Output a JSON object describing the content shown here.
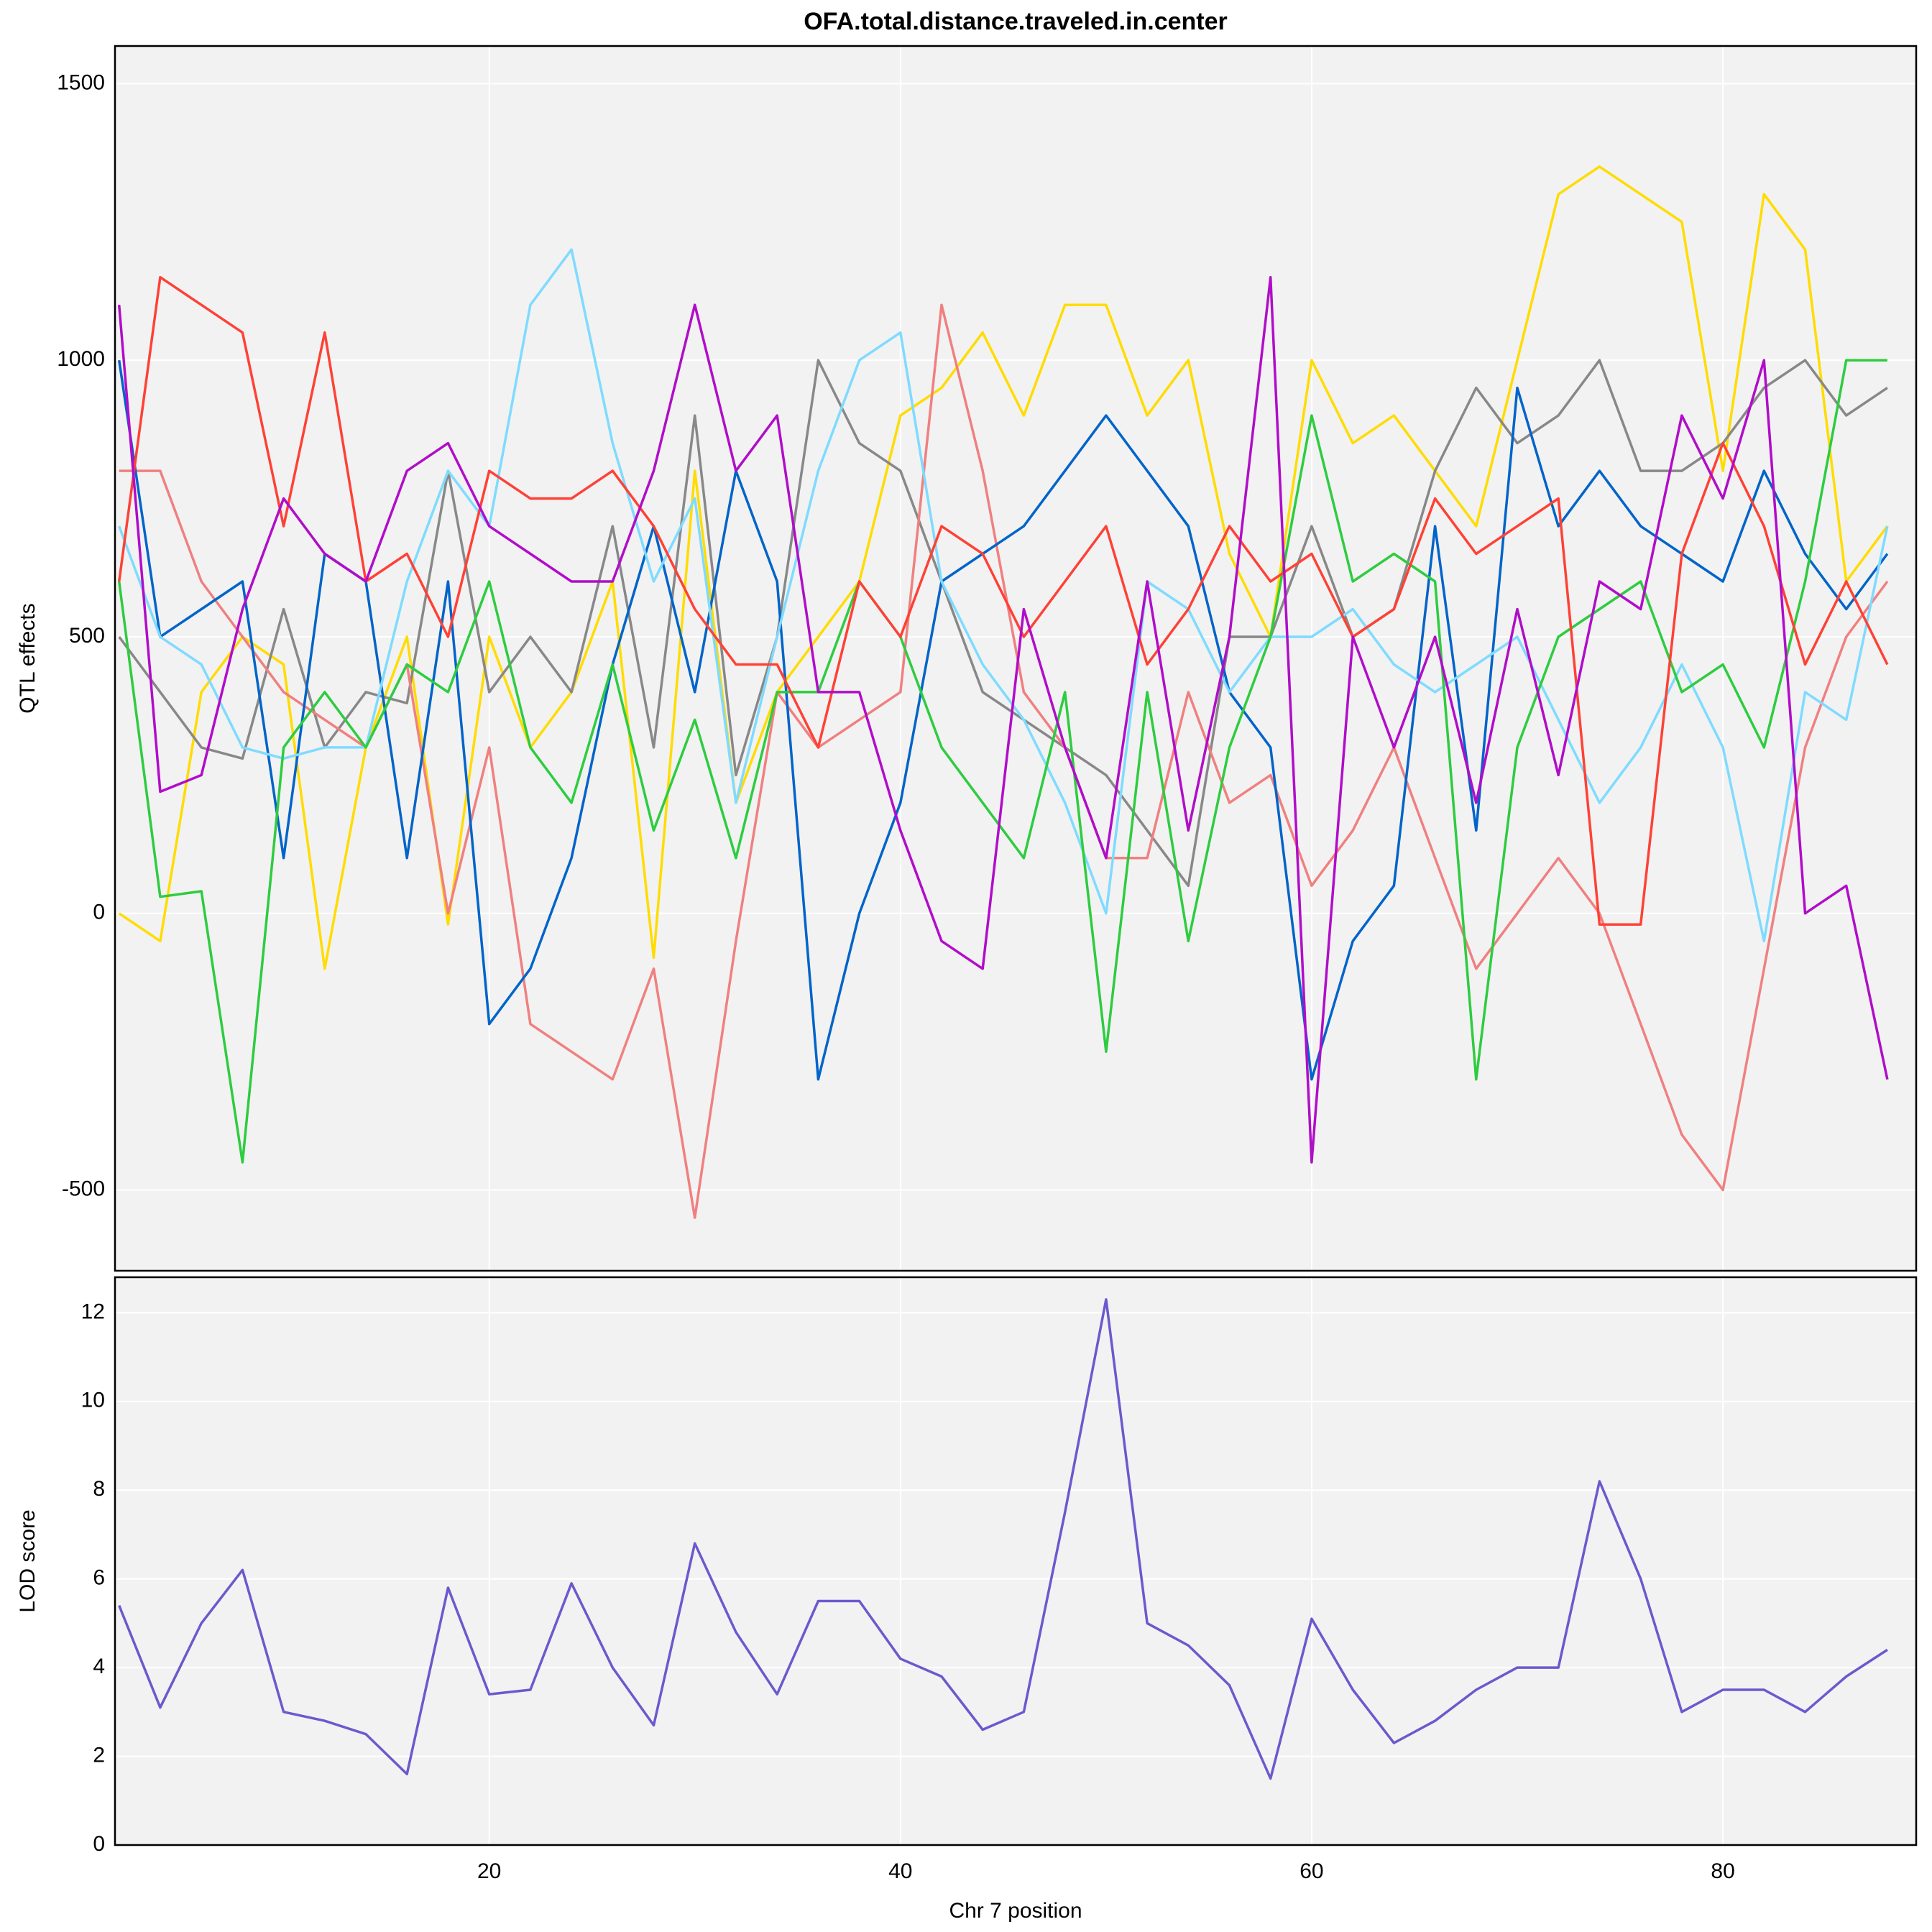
{
  "chart_data": [
    {
      "type": "line",
      "title": "OFA.total.distance.traveled.in.center",
      "y_label": "QTL effects",
      "x": [
        2,
        4,
        6,
        8,
        10,
        12,
        14,
        16,
        18,
        20,
        22,
        24,
        26,
        28,
        30,
        32,
        34,
        36,
        38,
        40,
        42,
        44,
        46,
        48,
        50,
        52,
        54,
        56,
        58,
        60,
        62,
        64,
        66,
        68,
        70,
        72,
        74,
        76,
        78,
        80,
        82,
        84,
        86,
        88
      ],
      "ylim": [
        -646,
        1568
      ],
      "yticks": [
        -500,
        0,
        500,
        1000,
        1500
      ],
      "grid": true,
      "series": [
        {
          "color": "#FFDC00",
          "values": [
            0,
            -50,
            400,
            500,
            450,
            -100,
            300,
            500,
            -20,
            500,
            300,
            400,
            600,
            -80,
            800,
            200,
            400,
            500,
            600,
            900,
            950,
            1050,
            900,
            1100,
            1100,
            900,
            1000,
            650,
            500,
            1000,
            850,
            900,
            800,
            700,
            1000,
            1300,
            1350,
            1300,
            1250,
            800,
            1300,
            1200,
            600,
            700
          ]
        },
        {
          "color": "#888888",
          "values": [
            500,
            400,
            300,
            280,
            550,
            300,
            400,
            380,
            800,
            400,
            500,
            400,
            700,
            300,
            900,
            250,
            500,
            1000,
            850,
            800,
            600,
            400,
            350,
            300,
            250,
            150,
            50,
            500,
            500,
            700,
            500,
            550,
            800,
            950,
            850,
            900,
            1000,
            800,
            800,
            850,
            950,
            1000,
            900,
            950
          ]
        },
        {
          "color": "#F08080",
          "values": [
            800,
            800,
            600,
            500,
            400,
            350,
            300,
            450,
            0,
            300,
            -200,
            -250,
            -300,
            -100,
            -550,
            -50,
            400,
            300,
            350,
            400,
            1100,
            800,
            400,
            300,
            100,
            100,
            400,
            200,
            250,
            50,
            150,
            300,
            100,
            -100,
            0,
            100,
            0,
            -200,
            -400,
            -500,
            -100,
            300,
            500,
            600
          ]
        },
        {
          "color": "#0064C9",
          "values": [
            1000,
            500,
            550,
            600,
            100,
            650,
            600,
            100,
            600,
            -200,
            -100,
            100,
            450,
            700,
            400,
            800,
            600,
            -300,
            0,
            200,
            600,
            650,
            700,
            800,
            900,
            800,
            700,
            400,
            300,
            -300,
            -50,
            50,
            700,
            150,
            950,
            700,
            800,
            700,
            650,
            600,
            800,
            650,
            550,
            650
          ]
        },
        {
          "color": "#7FDBFF",
          "values": [
            700,
            500,
            450,
            300,
            280,
            300,
            300,
            600,
            800,
            700,
            1100,
            1200,
            850,
            600,
            750,
            200,
            500,
            800,
            1000,
            1050,
            600,
            450,
            350,
            200,
            0,
            600,
            550,
            400,
            500,
            500,
            550,
            450,
            400,
            450,
            500,
            350,
            200,
            300,
            450,
            300,
            -50,
            400,
            350,
            700
          ]
        },
        {
          "color": "#2ECC40",
          "values": [
            600,
            30,
            40,
            -450,
            300,
            400,
            300,
            450,
            400,
            600,
            300,
            200,
            450,
            150,
            350,
            100,
            400,
            400,
            600,
            500,
            300,
            200,
            100,
            400,
            -250,
            400,
            -50,
            300,
            500,
            900,
            600,
            650,
            600,
            -300,
            300,
            500,
            550,
            600,
            400,
            450,
            300,
            600,
            1000,
            1000
          ]
        },
        {
          "color": "#FF4136",
          "values": [
            600,
            1150,
            1100,
            1050,
            700,
            1050,
            600,
            650,
            500,
            800,
            750,
            750,
            800,
            700,
            550,
            450,
            450,
            300,
            600,
            500,
            700,
            650,
            500,
            600,
            700,
            450,
            550,
            700,
            600,
            650,
            500,
            550,
            750,
            650,
            700,
            750,
            -20,
            -20,
            650,
            850,
            700,
            450,
            600,
            450
          ]
        },
        {
          "color": "#B10DC9",
          "values": [
            1100,
            220,
            250,
            550,
            750,
            650,
            600,
            800,
            850,
            700,
            650,
            600,
            600,
            800,
            1100,
            800,
            900,
            400,
            400,
            150,
            -50,
            -100,
            550,
            300,
            100,
            600,
            150,
            500,
            1150,
            -450,
            500,
            300,
            500,
            200,
            550,
            250,
            600,
            550,
            900,
            750,
            1000,
            0,
            50,
            -300
          ]
        }
      ]
    },
    {
      "type": "line",
      "x_label": "Chr 7 position",
      "y_label": "LOD score",
      "color": "#6A5ACD",
      "x": [
        2,
        4,
        6,
        8,
        10,
        12,
        14,
        16,
        18,
        20,
        22,
        24,
        26,
        28,
        30,
        32,
        34,
        36,
        38,
        40,
        42,
        44,
        46,
        48,
        50,
        52,
        54,
        56,
        58,
        60,
        62,
        64,
        66,
        68,
        70,
        72,
        74,
        76,
        78,
        80,
        82,
        84,
        86,
        88
      ],
      "values": [
        5.4,
        3.1,
        5.0,
        6.2,
        3.0,
        2.8,
        2.5,
        1.6,
        5.8,
        3.4,
        3.5,
        5.9,
        4.0,
        2.7,
        6.8,
        4.8,
        3.4,
        5.5,
        5.5,
        4.2,
        3.8,
        2.6,
        3.0,
        7.5,
        12.3,
        5.0,
        4.5,
        3.6,
        1.5,
        5.1,
        3.5,
        2.3,
        2.8,
        3.5,
        4.0,
        4.0,
        8.2,
        6.0,
        3.0,
        3.5,
        3.5,
        3.0,
        3.8,
        4.4
      ],
      "xlim": [
        1.8,
        89.4
      ],
      "xticks": [
        20,
        40,
        60,
        80
      ],
      "ylim": [
        0,
        12.8
      ],
      "yticks": [
        0,
        2,
        4,
        6,
        8,
        10,
        12
      ],
      "grid": true
    }
  ]
}
